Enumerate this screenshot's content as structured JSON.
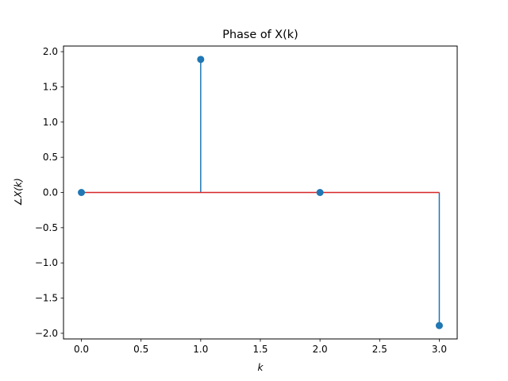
{
  "chart_data": {
    "type": "stem",
    "title": "Phase of X(k)",
    "xlabel": "k",
    "ylabel": "∠X(k)",
    "x": [
      0,
      1,
      2,
      3
    ],
    "values": [
      0.0,
      1.89,
      0.0,
      -1.89
    ],
    "xlim": [
      -0.15,
      3.15
    ],
    "ylim": [
      -2.08,
      2.08
    ],
    "xticks": [
      0.0,
      0.5,
      1.0,
      1.5,
      2.0,
      2.5,
      3.0
    ],
    "xtick_labels": [
      "0.0",
      "0.5",
      "1.0",
      "1.5",
      "2.0",
      "2.5",
      "3.0"
    ],
    "yticks": [
      2.0,
      1.5,
      1.0,
      0.5,
      0.0,
      -0.5,
      -1.0,
      -1.5,
      -2.0
    ],
    "ytick_labels": [
      "2.0",
      "1.5",
      "1.0",
      "0.5",
      "0.0",
      "−0.5",
      "−1.0",
      "−1.5",
      "−2.0"
    ],
    "baseline": 0,
    "grid": false,
    "colors": {
      "stem": "#1f77b4",
      "marker": "#1f77b4",
      "baseline": "#d62728"
    }
  }
}
